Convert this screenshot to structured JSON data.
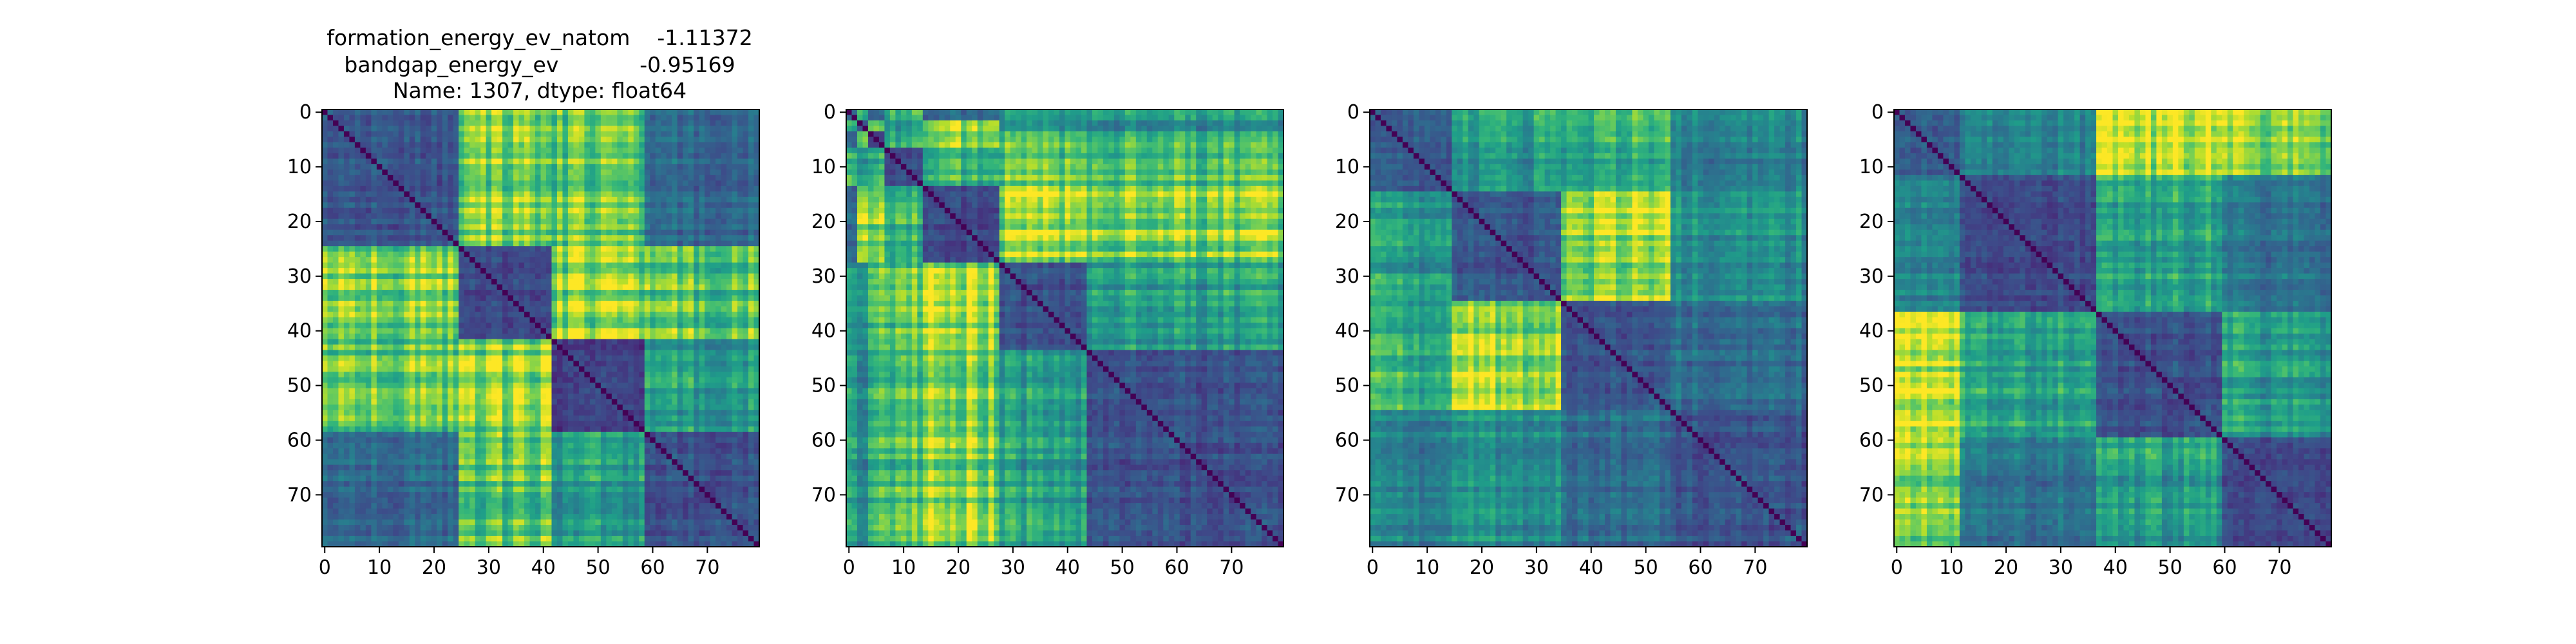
{
  "chart_data": [
    {
      "type": "heatmap",
      "title_lines": [
        "formation_energy_ev_natom    -1.11372",
        "bandgap_energy_ev            -0.95169",
        "Name: 1307, dtype: float64"
      ],
      "n": 80,
      "blocks": [
        25,
        17,
        17,
        21
      ],
      "xticks": [
        0,
        10,
        20,
        30,
        40,
        50,
        60,
        70
      ],
      "yticks": [
        0,
        10,
        20,
        30,
        40,
        50,
        60,
        70
      ],
      "xlim": [
        -0.5,
        79.5
      ],
      "ylim": [
        79.5,
        -0.5
      ],
      "colormap": "viridis",
      "value_range": [
        0,
        1
      ]
    },
    {
      "type": "heatmap",
      "title_lines": [],
      "n": 80,
      "blocks": [
        2,
        2,
        3,
        7,
        14,
        16,
        36
      ],
      "xticks": [
        0,
        10,
        20,
        30,
        40,
        50,
        60,
        70
      ],
      "yticks": [
        0,
        10,
        20,
        30,
        40,
        50,
        60,
        70
      ],
      "xlim": [
        -0.5,
        79.5
      ],
      "ylim": [
        79.5,
        -0.5
      ],
      "colormap": "viridis",
      "value_range": [
        0,
        1
      ]
    },
    {
      "type": "heatmap",
      "title_lines": [],
      "n": 80,
      "blocks": [
        15,
        20,
        20,
        25
      ],
      "xticks": [
        0,
        10,
        20,
        30,
        40,
        50,
        60,
        70
      ],
      "yticks": [
        0,
        10,
        20,
        30,
        40,
        50,
        60,
        70
      ],
      "xlim": [
        -0.5,
        79.5
      ],
      "ylim": [
        79.5,
        -0.5
      ],
      "colormap": "viridis",
      "value_range": [
        0,
        1
      ]
    },
    {
      "type": "heatmap",
      "title_lines": [],
      "n": 80,
      "blocks": [
        12,
        25,
        23,
        20
      ],
      "xticks": [
        0,
        10,
        20,
        30,
        40,
        50,
        60,
        70
      ],
      "yticks": [
        0,
        10,
        20,
        30,
        40,
        50,
        60,
        70
      ],
      "xlim": [
        -0.5,
        79.5
      ],
      "ylim": [
        79.5,
        -0.5
      ],
      "colormap": "viridis",
      "value_range": [
        0,
        1
      ]
    }
  ],
  "colors": {
    "background": "#ffffff",
    "axis": "#000000",
    "viridis_low": "#440154",
    "viridis_mid": "#21918c",
    "viridis_high": "#fde725"
  }
}
